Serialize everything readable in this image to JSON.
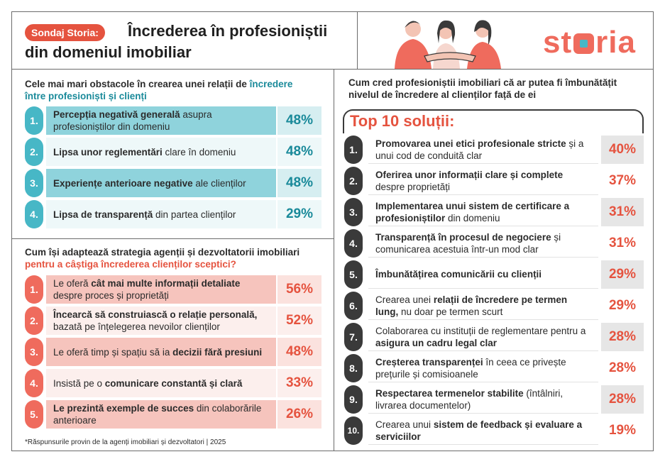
{
  "header": {
    "badge": "Sondaj Storia:",
    "title_line1": "Încrederea în profesioniștii",
    "title_line2": "din domeniul imobiliar",
    "logo_pre": "st",
    "logo_post": "ria"
  },
  "obstacles": {
    "heading_a": "Cele mai mari obstacole în crearea unei relații de ",
    "heading_hl1": "încredere",
    "heading_b": "între profesioniști și clienți",
    "items": [
      {
        "num": "1.",
        "bold": "Percepția negativă generală",
        "rest": " asupra profesioniștilor din domeniu",
        "pct": "48%"
      },
      {
        "num": "2.",
        "bold": "Lipsa unor reglementări",
        "rest": " clare în domeniu",
        "pct": "48%"
      },
      {
        "num": "3.",
        "bold": "Experiențe anterioare negative",
        "rest": " ale clienților",
        "pct": "48%"
      },
      {
        "num": "4.",
        "bold": "Lipsa de transparență",
        "rest": " din partea clienților",
        "pct": "29%"
      }
    ]
  },
  "strategies": {
    "heading_a": "Cum își adaptează strategia agenții și dezvoltatorii imobiliari",
    "heading_hl": "pentru a câștiga încrederea clienților sceptici?",
    "items": [
      {
        "num": "1.",
        "pre": "Le oferă ",
        "bold": "cât mai multe informații detaliate",
        "rest": " despre proces și proprietăți",
        "pct": "56%"
      },
      {
        "num": "2.",
        "pre": "",
        "bold": "Încearcă să construiască o relație personală,",
        "rest": " bazată pe înțelegerea nevoilor clienților",
        "pct": "52%"
      },
      {
        "num": "3.",
        "pre": "Le oferă timp și spațiu să ia ",
        "bold": "decizii fără presiuni",
        "rest": "",
        "pct": "48%"
      },
      {
        "num": "4.",
        "pre": "Insistă pe o ",
        "bold": "comunicare constantă și clară",
        "rest": "",
        "pct": "33%"
      },
      {
        "num": "5.",
        "pre": "",
        "bold": "Le prezintă exemple de succes",
        "rest": " din colaborările anterioare",
        "pct": "26%"
      }
    ],
    "footnote": "*Răspunsurile provin de la agenți imobiliari și dezvoltatori | 2025"
  },
  "solutions": {
    "heading": "Cum cred profesioniștii imobiliari că ar putea fi îmbunătățit nivelul de încredere al clienților față de ei",
    "top_title": "Top 10 soluții:",
    "items": [
      {
        "num": "1.",
        "pre": "",
        "bold": "Promovarea unei etici profesionale stricte",
        "rest": " și a unui cod de conduită clar",
        "pct": "40%"
      },
      {
        "num": "2.",
        "pre": "",
        "bold": "Oferirea unor informații clare și complete",
        "rest": " despre proprietăți",
        "pct": "37%"
      },
      {
        "num": "3.",
        "pre": "",
        "bold": "Implementarea unui sistem de certificare a profesioniștilor",
        "rest": " din domeniu",
        "pct": "31%"
      },
      {
        "num": "4.",
        "pre": "",
        "bold": "Transparență în procesul de negociere",
        "rest": " și comunicarea acestuia într-un mod clar",
        "pct": "31%"
      },
      {
        "num": "5.",
        "pre": "",
        "bold": "Îmbunătățirea comunicării cu clienții",
        "rest": "",
        "pct": "29%"
      },
      {
        "num": "6.",
        "pre": "Crearea unei ",
        "bold": "relații de încredere pe termen lung,",
        "rest": " nu doar pe termen scurt",
        "pct": "29%"
      },
      {
        "num": "7.",
        "pre": "Colaborarea cu instituții de reglementare pentru a ",
        "bold": "asigura un cadru legal clar",
        "rest": "",
        "pct": "28%"
      },
      {
        "num": "8.",
        "pre": "",
        "bold": "Creșterea transparenței",
        "rest": " în ceea ce privește prețurile și comisioanele",
        "pct": "28%"
      },
      {
        "num": "9.",
        "pre": "",
        "bold": "Respectarea termenelor stabilite",
        "rest": " (întâlniri, livrarea documentelor)",
        "pct": "28%"
      },
      {
        "num": "10.",
        "pre": "Crearea unui ",
        "bold": "sistem de feedback și evaluare a serviciilor",
        "rest": "",
        "pct": "19%"
      }
    ]
  },
  "colors": {
    "teal": "#47b7c6",
    "coral": "#ef6b5d",
    "dark": "#3a3a3a",
    "teal_text": "#1a8a9a",
    "coral_text": "#e5533f"
  }
}
